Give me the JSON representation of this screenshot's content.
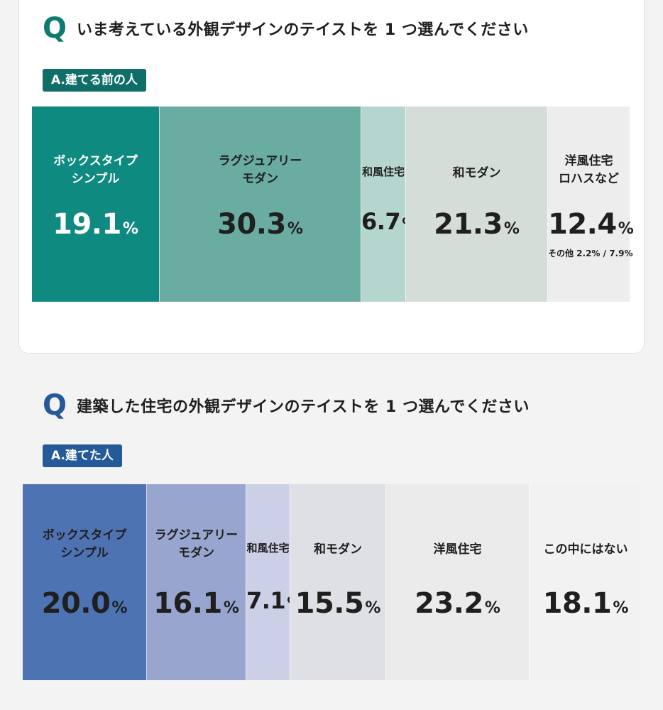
{
  "chart_data": [
    {
      "type": "bar",
      "question": "いま考えている外観デザインのテイストを 1 つ選んでください",
      "answer_group": "A.建てる前の人",
      "categories": [
        "ボックスタイプ\nシンプル",
        "ラグジュアリー\nモダン",
        "和風住宅",
        "和モダン",
        "洋風住宅\nロハスなど"
      ],
      "values": [
        19.1,
        30.3,
        6.7,
        21.3,
        12.4
      ],
      "value_labels": [
        "19.1",
        "30.3",
        "6.7",
        "21.3",
        "12.4"
      ],
      "unit": "%",
      "note": "その他 2.2% / 7.9%",
      "colors": [
        "#0e8a80",
        "#6aaca2",
        "#b5d6cf",
        "#d5ddd8",
        "#ededed"
      ],
      "text_colors": [
        "#ffffff",
        "#1f1f1f",
        "#1f1f1f",
        "#1f1f1f",
        "#1f1f1f"
      ]
    },
    {
      "type": "bar",
      "question": "建築した住宅の外観デザインのテイストを 1 つ選んでください",
      "answer_group": "A.建てた人",
      "categories": [
        "ボックスタイプ\nシンプル",
        "ラグジュアリー\nモダン",
        "和風住宅",
        "和モダン",
        "洋風住宅",
        "この中にはない"
      ],
      "values": [
        20.0,
        16.1,
        7.1,
        15.5,
        23.2,
        18.1
      ],
      "value_labels": [
        "20.0",
        "16.1",
        "7.1",
        "15.5",
        "23.2",
        "18.1"
      ],
      "unit": "%",
      "colors": [
        "#4e73b2",
        "#98a6cf",
        "#cbd0e6",
        "#dfe0e5",
        "#ebebeb",
        "#f2f2f2"
      ],
      "text_colors": [
        "#1f1f1f",
        "#1f1f1f",
        "#1f1f1f",
        "#1f1f1f",
        "#1f1f1f",
        "#1f1f1f"
      ]
    }
  ],
  "q_letter": "Q",
  "accent": {
    "teal": "#0e7a72",
    "blue": "#245a9a"
  }
}
